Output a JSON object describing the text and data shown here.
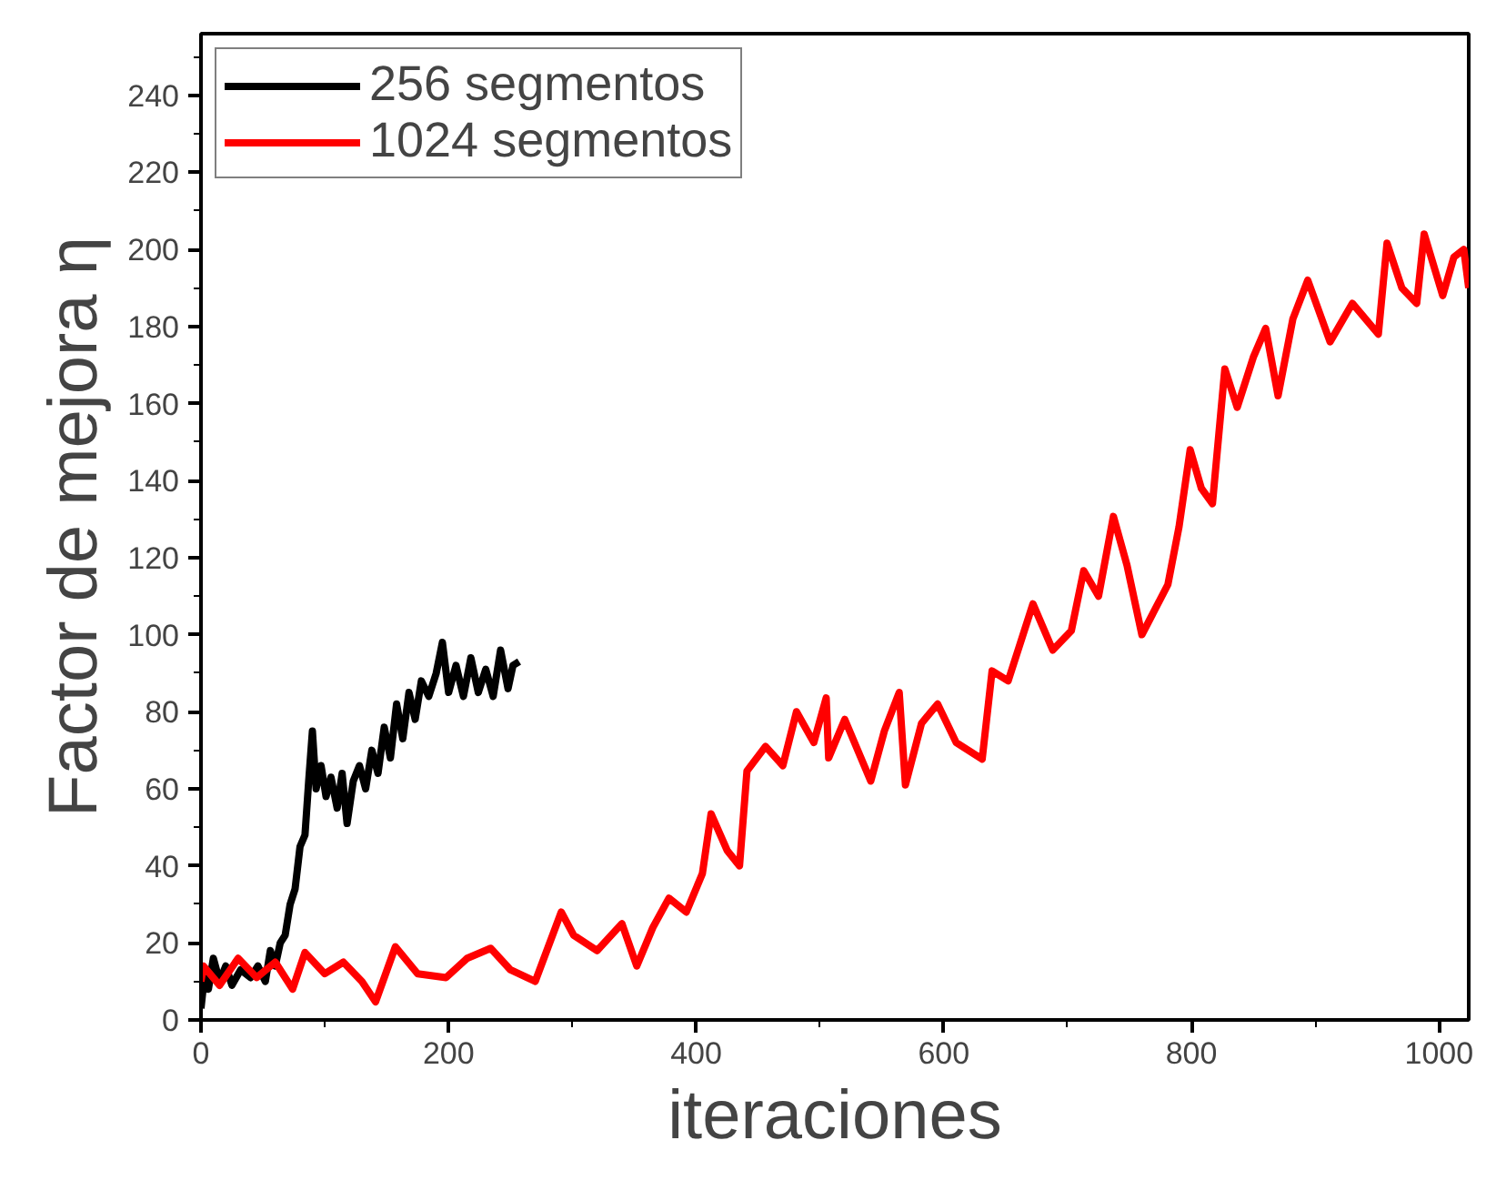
{
  "chart_data": {
    "type": "line",
    "xlabel": "iteraciones",
    "ylabel": "Factor de mejora η",
    "xlim": [
      0,
      1024
    ],
    "ylim": [
      0,
      256
    ],
    "xticks": [
      0,
      200,
      400,
      600,
      800,
      1000
    ],
    "yticks": [
      0,
      20,
      40,
      60,
      80,
      100,
      120,
      140,
      160,
      180,
      200,
      220,
      240
    ],
    "grid": false,
    "legend": "top left",
    "line_style": "solid",
    "marker": "none",
    "series": [
      {
        "name": "256 segmentos",
        "color": "#000000",
        "x": [
          0,
          3,
          6,
          10,
          15,
          20,
          25,
          32,
          40,
          46,
          52,
          56,
          60,
          64,
          68,
          72,
          76,
          80,
          84,
          87,
          90,
          93,
          97,
          101,
          105,
          110,
          114,
          118,
          123,
          128,
          133,
          138,
          143,
          148,
          153,
          158,
          163,
          168,
          173,
          178,
          184,
          190,
          195,
          200,
          206,
          212,
          218,
          224,
          230,
          236,
          242,
          248,
          252,
          257
        ],
        "values": [
          3,
          12,
          8,
          16,
          10,
          14,
          9,
          13,
          11,
          14,
          10,
          18,
          14,
          20,
          22,
          30,
          34,
          45,
          48,
          62,
          75,
          60,
          66,
          58,
          63,
          55,
          64,
          51,
          62,
          66,
          60,
          70,
          64,
          76,
          68,
          82,
          73,
          85,
          78,
          88,
          84,
          90,
          98,
          85,
          92,
          84,
          94,
          85,
          91,
          84,
          96,
          86,
          92,
          93
        ]
      },
      {
        "name": "1024 segmentos",
        "color": "#ff0000",
        "x": [
          0,
          2,
          15,
          30,
          45,
          60,
          74,
          84,
          100,
          115,
          130,
          141,
          157,
          175,
          198,
          215,
          234,
          250,
          270,
          291,
          301,
          320,
          340,
          352,
          365,
          378,
          392,
          405,
          412,
          425,
          435,
          441,
          456,
          470,
          481,
          495,
          505,
          507,
          520,
          541,
          552,
          564,
          569,
          582,
          595,
          610,
          631,
          639,
          652,
          672,
          688,
          703,
          713,
          725,
          737,
          748,
          760,
          781,
          790,
          799,
          808,
          817,
          827,
          837,
          850,
          860,
          870,
          882,
          894,
          912,
          930,
          951,
          958,
          970,
          982,
          988,
          1003,
          1012,
          1020,
          1024
        ],
        "values": [
          10,
          14,
          9,
          16,
          11,
          15,
          8,
          17.5,
          12,
          15,
          10,
          4.7,
          19,
          12,
          11,
          16,
          18.6,
          13,
          10,
          28,
          22,
          18,
          25,
          14,
          24,
          31.6,
          28,
          38,
          53.5,
          44,
          40,
          64.6,
          71,
          66,
          80,
          72,
          83.6,
          68,
          78,
          62,
          75,
          85,
          61,
          77,
          82,
          72,
          67.7,
          90.6,
          88,
          108,
          96,
          101,
          116.6,
          110,
          130.7,
          118,
          100,
          113,
          128,
          148,
          138,
          134,
          169,
          159,
          172,
          179.5,
          162,
          182,
          192,
          176,
          186,
          178,
          201.6,
          190,
          186,
          204,
          188,
          198,
          200,
          190
        ]
      }
    ]
  }
}
